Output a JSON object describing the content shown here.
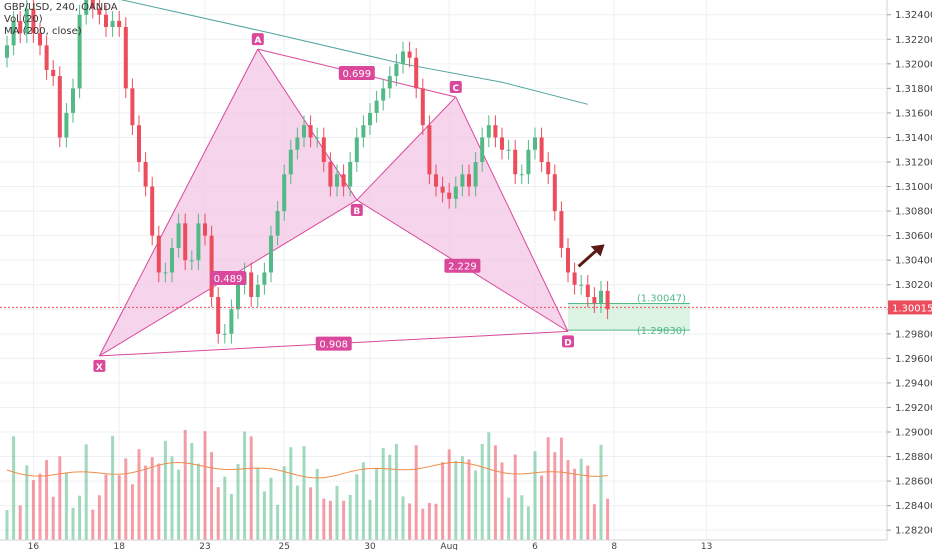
{
  "chart_data": {
    "type": "candlestick",
    "legend": [
      "GBP/USD, 240, OANDA",
      "Vol (20)",
      "MA (200, close)"
    ],
    "x_ticks": [
      {
        "label": "16",
        "i": 4
      },
      {
        "label": "18",
        "i": 17
      },
      {
        "label": "23",
        "i": 30
      },
      {
        "label": "25",
        "i": 42
      },
      {
        "label": "30",
        "i": 55
      },
      {
        "label": "Aug",
        "i": 67
      },
      {
        "label": "6",
        "i": 80
      },
      {
        "label": "8",
        "i": 92
      },
      {
        "label": "13",
        "i": 106
      }
    ],
    "y_ticks": [
      "1.32400",
      "1.32200",
      "1.32000",
      "1.31800",
      "1.31600",
      "1.31400",
      "1.31200",
      "1.31000",
      "1.30800",
      "1.30600",
      "1.30400",
      "1.30200",
      "1.30000",
      "1.29800",
      "1.29600",
      "1.29400",
      "1.29200",
      "1.29000",
      "1.28800",
      "1.28600",
      "1.28400",
      "1.28200"
    ],
    "y_ticks_values": [
      1.324,
      1.322,
      1.32,
      1.318,
      1.316,
      1.314,
      1.312,
      1.31,
      1.308,
      1.306,
      1.304,
      1.302,
      1.3,
      1.298,
      1.296,
      1.294,
      1.292,
      1.29,
      1.288,
      1.286,
      1.284,
      1.282
    ],
    "ylim": [
      1.2812,
      1.3252
    ],
    "last_price": "1.30015",
    "last_price_value": 1.30015,
    "candles_close": [
      1.3215,
      1.3235,
      1.3225,
      1.3245,
      1.3225,
      1.3215,
      1.3195,
      1.319,
      1.314,
      1.316,
      1.318,
      1.324,
      1.3255,
      1.3245,
      1.324,
      1.323,
      1.3235,
      1.323,
      1.318,
      1.315,
      1.312,
      1.31,
      1.306,
      1.303,
      1.303,
      1.305,
      1.307,
      1.304,
      1.304,
      1.307,
      1.306,
      1.301,
      1.298,
      1.298,
      1.3,
      1.302,
      1.303,
      1.301,
      1.302,
      1.303,
      1.306,
      1.308,
      1.311,
      1.313,
      1.314,
      1.315,
      1.314,
      1.314,
      1.312,
      1.31,
      1.311,
      1.31,
      1.312,
      1.314,
      1.315,
      1.316,
      1.317,
      1.318,
      1.319,
      1.32,
      1.321,
      1.3205,
      1.318,
      1.315,
      1.311,
      1.31,
      1.3095,
      1.309,
      1.31,
      1.311,
      1.31,
      1.312,
      1.314,
      1.315,
      1.314,
      1.313,
      1.313,
      1.311,
      1.311,
      1.313,
      1.314,
      1.312,
      1.311,
      1.308,
      1.305,
      1.303,
      1.302,
      1.302,
      1.301,
      1.3005,
      1.3015,
      1.3
    ],
    "ma200": [
      {
        "i": 15,
        "v": 1.3255
      },
      {
        "i": 40,
        "v": 1.3225
      },
      {
        "i": 60,
        "v": 1.32
      },
      {
        "i": 75,
        "v": 1.3185
      },
      {
        "i": 88,
        "v": 1.3167
      }
    ],
    "harmonic_pattern": {
      "points": [
        {
          "label": "X",
          "i": 14,
          "v": 1.2962
        },
        {
          "label": "A",
          "i": 38,
          "v": 1.3212
        },
        {
          "label": "B",
          "i": 53,
          "v": 1.3089
        },
        {
          "label": "C",
          "i": 68,
          "v": 1.3173
        },
        {
          "label": "D",
          "i": 85,
          "v": 1.2982
        }
      ],
      "ratios": [
        {
          "label": "0.489",
          "from": "X",
          "to": "B"
        },
        {
          "label": "0.699",
          "from": "A",
          "to": "C"
        },
        {
          "label": "2.229",
          "from": "B",
          "to": "D"
        },
        {
          "label": "0.908",
          "from": "X",
          "to": "D"
        }
      ]
    },
    "target_box": {
      "upper_label": "(1.30047)",
      "upper_value": 1.30047,
      "lower_label": "(1.29830)",
      "lower_value": 1.2983
    },
    "colors": {
      "up": "#53b987",
      "down": "#eb4d5c",
      "ma": "#4fa3a0",
      "vol_ma": "#f08c4b",
      "pattern_line": "#d9489a",
      "pattern_fill": "#f3c6e4",
      "target_line": "#53b987",
      "target_fill": "#d5f0dc",
      "price_line": "#eb4d5c",
      "arrow": "#5a1a14"
    }
  }
}
